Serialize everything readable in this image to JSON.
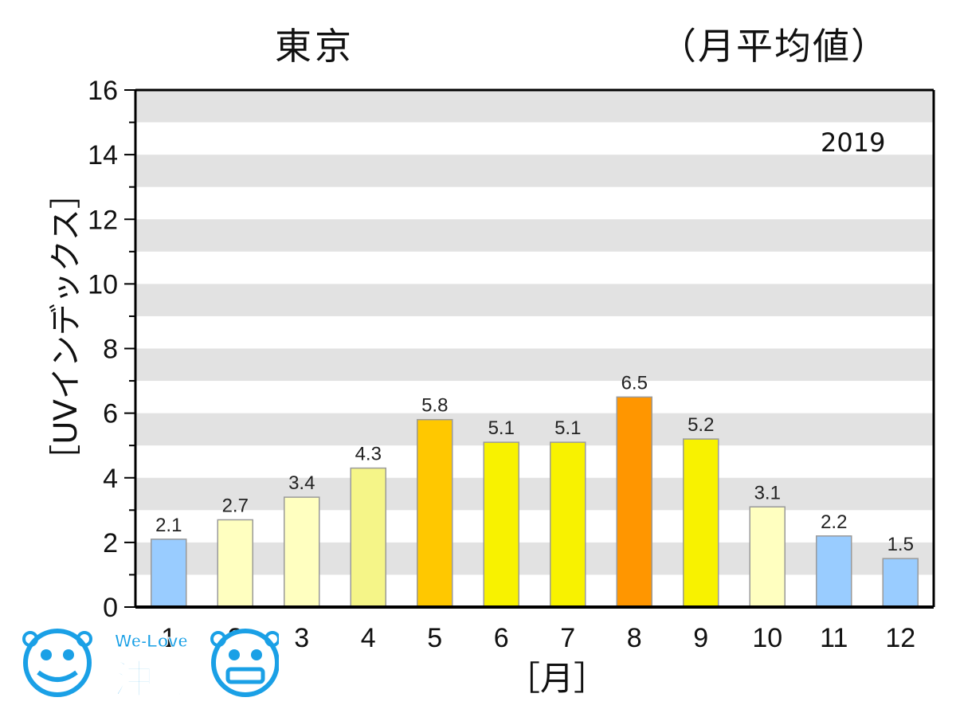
{
  "chart_data": {
    "type": "bar",
    "title": "東京",
    "subtitle": "（月平均値）",
    "annotation": "2019",
    "xlabel": "［月］",
    "ylabel": "［UVインデックス］",
    "categories": [
      "1",
      "2",
      "3",
      "4",
      "5",
      "6",
      "7",
      "8",
      "9",
      "10",
      "11",
      "12"
    ],
    "values": [
      2.1,
      2.7,
      3.4,
      4.3,
      5.8,
      5.1,
      5.1,
      6.5,
      5.2,
      3.1,
      2.2,
      1.5
    ],
    "value_labels": [
      "2.1",
      "2.7",
      "3.4",
      "4.3",
      "5.8",
      "5.1",
      "5.1",
      "6.5",
      "5.2",
      "3.1",
      "2.2",
      "1.5"
    ],
    "bar_colors": [
      "#99ccff",
      "#ffffc0",
      "#ffffc0",
      "#f5f588",
      "#ffc800",
      "#f8f200",
      "#f8f200",
      "#ff9600",
      "#f8f200",
      "#ffffc0",
      "#99ccff",
      "#99ccff"
    ],
    "ylim": [
      0,
      16
    ],
    "yticks": [
      "0",
      "2",
      "4",
      "6",
      "8",
      "10",
      "12",
      "14",
      "16"
    ],
    "grid": "alternating horizontal bands"
  },
  "logo": {
    "text_top": "We-Love",
    "text_main": "沖縄"
  }
}
